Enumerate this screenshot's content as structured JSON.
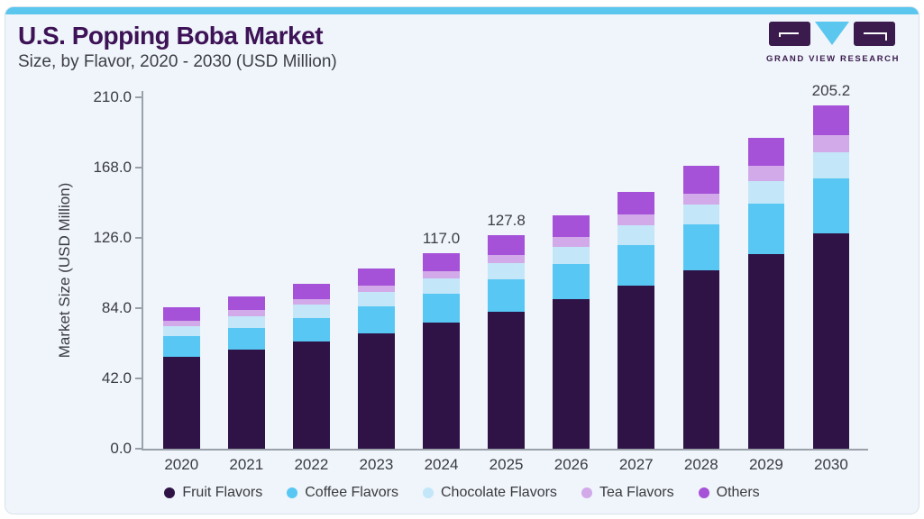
{
  "header": {
    "title": "U.S. Popping Boba Market",
    "subtitle": "Size, by Flavor, 2020 - 2030 (USD Million)",
    "logo_text": "GRAND VIEW RESEARCH"
  },
  "colors": {
    "accent_strip": "#5bc6ee",
    "card_background": "#eff5fa",
    "title_text": "#3d1256",
    "body_text": "#3e3e46",
    "axis": "#9aa1a9",
    "logo_purple": "#3b1b4e",
    "logo_cyan": "#5bc6ee"
  },
  "chart_data": {
    "type": "bar",
    "stacked": true,
    "title": "U.S. Popping Boba Market Size, by Flavor, 2020 - 2030 (USD Million)",
    "xlabel": "",
    "ylabel": "Market Size (USD Million)",
    "ylim": [
      0,
      210
    ],
    "yticks": [
      0,
      42,
      84,
      126,
      168,
      210
    ],
    "ytick_labels": [
      "0.0",
      "42.0",
      "84.0",
      "126.0",
      "168.0",
      "210.0"
    ],
    "grid": false,
    "legend_position": "bottom",
    "categories": [
      "2020",
      "2021",
      "2022",
      "2023",
      "2024",
      "2025",
      "2026",
      "2027",
      "2028",
      "2029",
      "2030"
    ],
    "series": [
      {
        "name": "Fruit Flavors",
        "color": "#2f1347",
        "values": [
          55.1,
          59.2,
          64.3,
          69.1,
          75.4,
          81.6,
          89.2,
          97.4,
          106.6,
          116.1,
          128.5
        ]
      },
      {
        "name": "Coffee Flavors",
        "color": "#58c7f3",
        "values": [
          12.0,
          13.2,
          14.0,
          15.9,
          17.2,
          19.4,
          21.2,
          24.2,
          27.7,
          30.2,
          32.9
        ]
      },
      {
        "name": "Chocolate Flavors",
        "color": "#c3e7f8",
        "values": [
          6.1,
          6.7,
          7.7,
          8.5,
          9.0,
          10.0,
          10.0,
          11.7,
          11.4,
          13.7,
          16.0
        ]
      },
      {
        "name": "Tea Flavors",
        "color": "#d2a9e9",
        "values": [
          3.3,
          3.6,
          3.2,
          4.2,
          4.5,
          5.0,
          6.1,
          6.6,
          6.8,
          8.9,
          9.9
        ]
      },
      {
        "name": "Others",
        "color": "#a551d8",
        "values": [
          8.1,
          8.1,
          9.6,
          10.0,
          10.9,
          11.8,
          13.2,
          13.6,
          16.5,
          16.9,
          17.9
        ]
      }
    ],
    "totals": [
      84.6,
      90.8,
      98.8,
      107.7,
      117.0,
      127.8,
      139.7,
      153.5,
      169.0,
      185.8,
      205.2
    ],
    "bar_labels": [
      null,
      null,
      null,
      null,
      "117.0",
      "127.8",
      null,
      null,
      null,
      null,
      "205.2"
    ]
  }
}
